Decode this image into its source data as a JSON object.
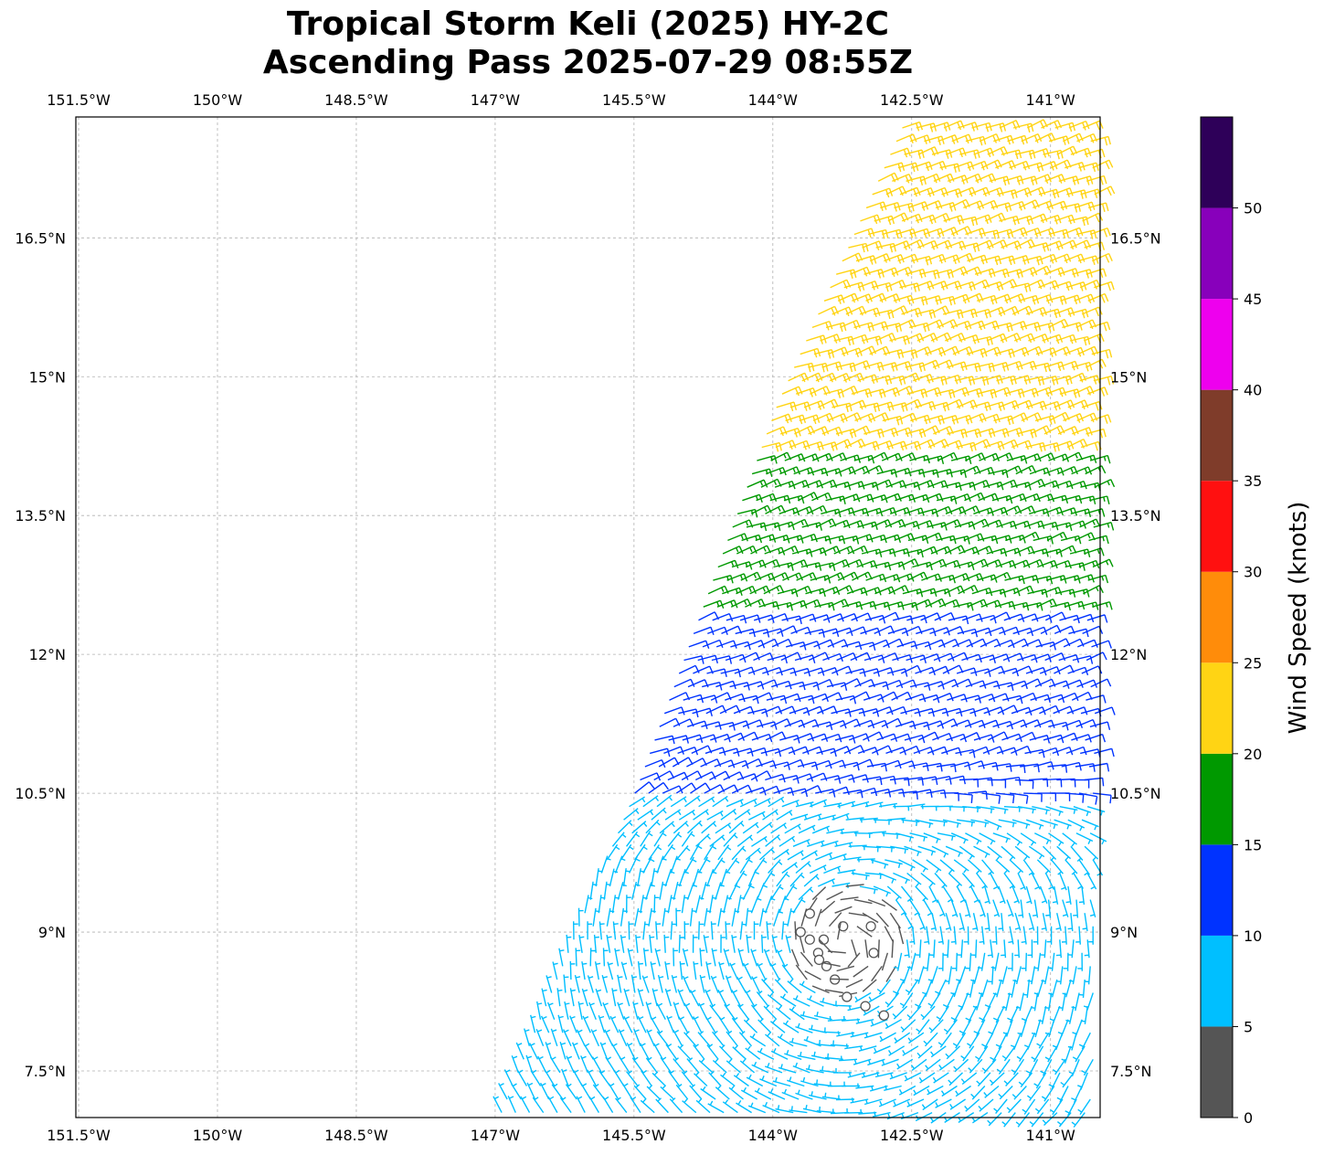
{
  "title": {
    "line1": "Tropical Storm Keli (2025) HY-2C",
    "line2": "Ascending Pass 2025-07-29 08:55Z"
  },
  "map": {
    "lon_range": [
      -151.55,
      -140.5
    ],
    "lat_range": [
      7.0,
      17.8
    ],
    "lon_ticks": [
      {
        "value": -151.5,
        "label": "151.5°W"
      },
      {
        "value": -150.0,
        "label": "150°W"
      },
      {
        "value": -148.5,
        "label": "148.5°W"
      },
      {
        "value": -147.0,
        "label": "147°W"
      },
      {
        "value": -145.5,
        "label": "145.5°W"
      },
      {
        "value": -144.0,
        "label": "144°W"
      },
      {
        "value": -142.5,
        "label": "142.5°W"
      },
      {
        "value": -141.0,
        "label": "141°W"
      }
    ],
    "lat_ticks": [
      {
        "value": 7.5,
        "label": "7.5°N"
      },
      {
        "value": 9.0,
        "label": "9°N"
      },
      {
        "value": 10.5,
        "label": "10.5°N"
      },
      {
        "value": 12.0,
        "label": "12°N"
      },
      {
        "value": 13.5,
        "label": "13.5°N"
      },
      {
        "value": 15.0,
        "label": "15°N"
      },
      {
        "value": 16.5,
        "label": "16.5°N"
      }
    ],
    "grid": true,
    "swath_west_edge": [
      [
        -147.0,
        7.0
      ],
      [
        -145.5,
        10.6
      ],
      [
        -144.0,
        14.7
      ],
      [
        -142.6,
        17.8
      ]
    ],
    "calm_points": [
      [
        -143.6,
        9.2
      ],
      [
        -143.7,
        9.0
      ],
      [
        -143.5,
        8.7
      ],
      [
        -143.2,
        8.3
      ],
      [
        -143.0,
        8.2
      ],
      [
        -142.8,
        8.1
      ]
    ]
  },
  "wind_field": {
    "center": [
      -143.2,
      8.9
    ],
    "spacing_deg": 0.125,
    "description_bands": [
      {
        "lat_from": 14.2,
        "speed_kt": 22
      },
      {
        "lat_from": 12.5,
        "speed_kt": 17
      },
      {
        "lat_from": 10.5,
        "speed_kt": 12
      },
      {
        "lat_from": 7.0,
        "speed_kt": 7
      }
    ]
  },
  "colorbar": {
    "label": "Wind Speed (knots)",
    "ticks": [
      "0",
      "5",
      "10",
      "15",
      "20",
      "25",
      "30",
      "35",
      "40",
      "45",
      "50"
    ],
    "bins": [
      {
        "from": 0,
        "to": 5,
        "color": "#555555"
      },
      {
        "from": 5,
        "to": 10,
        "color": "#00bfff"
      },
      {
        "from": 10,
        "to": 15,
        "color": "#0033ff"
      },
      {
        "from": 15,
        "to": 20,
        "color": "#009900"
      },
      {
        "from": 20,
        "to": 25,
        "color": "#ffd414"
      },
      {
        "from": 25,
        "to": 30,
        "color": "#ff8c0a"
      },
      {
        "from": 30,
        "to": 35,
        "color": "#ff1010"
      },
      {
        "from": 35,
        "to": 40,
        "color": "#7f3c2a"
      },
      {
        "from": 40,
        "to": 45,
        "color": "#ee00ee"
      },
      {
        "from": 45,
        "to": 50,
        "color": "#8800bb"
      },
      {
        "from": 50,
        "to": 55,
        "color": "#2e0059"
      }
    ]
  }
}
